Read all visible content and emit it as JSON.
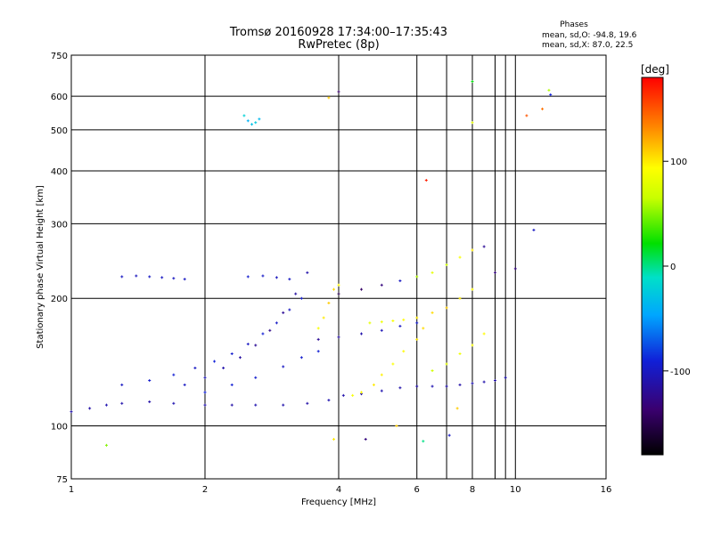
{
  "chart_data": {
    "type": "scatter",
    "title": "Tromsø 20160928 17:34:00–17:35:43",
    "subtitle": "RwPretec (8p)",
    "xlabel": "Frequency [MHz]",
    "ylabel": "Stationary phase Virtual Height [km]",
    "x_scale": "log",
    "y_scale": "log",
    "xlim": [
      1,
      16
    ],
    "ylim": [
      75,
      750
    ],
    "x_ticks": [
      1,
      2,
      4,
      6,
      8,
      10,
      16
    ],
    "y_ticks": [
      75,
      100,
      200,
      300,
      400,
      500,
      600,
      750
    ],
    "stats_header": "Phases",
    "stats_lines": [
      "mean, sd,O: -94.8, 19.6",
      "mean, sd,X:  87.0, 22.5"
    ],
    "colorbar": {
      "label": "[deg]",
      "ticks": [
        100,
        0,
        -100
      ],
      "range": [
        -180,
        180
      ]
    },
    "series": [
      {
        "description": "O-mode F trace",
        "x": [
          1.0,
          1.1,
          1.2,
          1.3,
          1.5,
          1.7,
          2.0,
          2.3,
          2.6,
          3.0,
          3.4,
          3.8,
          4.1,
          4.5,
          5.0,
          5.5,
          6.0,
          6.5,
          7.0,
          7.5,
          8.0,
          8.5,
          9.0,
          9.5
        ],
        "y": [
          108,
          110,
          112,
          113,
          114,
          113,
          112,
          112,
          112,
          112,
          113,
          115,
          118,
          119,
          121,
          123,
          124,
          124,
          124,
          125,
          126,
          127,
          128,
          130
        ],
        "phase": [
          -110,
          -112,
          -108,
          -110,
          -112,
          -108,
          -110,
          -112,
          -108,
          -110,
          -112,
          -108,
          -110,
          -112,
          -108,
          -110,
          -112,
          -108,
          -110,
          -112,
          -108,
          -110,
          -112,
          -108
        ]
      },
      {
        "description": "Rising trace 1",
        "x": [
          1.3,
          1.5,
          1.7,
          1.9,
          2.1,
          2.3,
          2.5,
          2.7,
          2.9,
          3.1,
          3.3
        ],
        "y": [
          125,
          128,
          132,
          137,
          142,
          148,
          156,
          165,
          175,
          188,
          200
        ],
        "phase": [
          -100,
          -95,
          -92,
          -100,
          -90,
          -95,
          -100,
          -92,
          -98,
          -100,
          -95
        ]
      },
      {
        "description": "Rising trace 2",
        "x": [
          1.8,
          2.0,
          2.2,
          2.4,
          2.6,
          2.8,
          3.0,
          3.2,
          3.4
        ],
        "y": [
          125,
          130,
          137,
          145,
          155,
          168,
          185,
          205,
          230
        ],
        "phase": [
          -100,
          -105,
          -110,
          -115,
          -120,
          -125,
          -120,
          -115,
          -110
        ]
      },
      {
        "description": "Rising trace 3",
        "x": [
          2.0,
          2.3,
          2.6,
          3.0,
          3.3,
          3.6
        ],
        "y": [
          120,
          125,
          130,
          138,
          145,
          150
        ],
        "phase": [
          -90,
          -92,
          -95,
          -100,
          -95,
          -92
        ]
      },
      {
        "description": "Horizontal band ~225 km",
        "x": [
          1.3,
          1.4,
          1.5,
          1.6,
          1.7,
          1.8,
          2.5,
          2.7,
          2.9,
          3.1
        ],
        "y": [
          225,
          226,
          225,
          224,
          223,
          222,
          225,
          226,
          224,
          222
        ],
        "phase": [
          -100,
          -102,
          -99,
          -100,
          -101,
          -100,
          -95,
          -98,
          -102,
          -99
        ]
      },
      {
        "description": "Cluster ~530 km",
        "x": [
          2.45,
          2.5,
          2.55,
          2.6,
          2.65
        ],
        "y": [
          540,
          525,
          515,
          520,
          530
        ],
        "phase": [
          -20,
          -40,
          -30,
          -25,
          -35
        ]
      },
      {
        "description": "Yellow (X-mode) trace 1",
        "x": [
          3.6,
          3.7,
          3.8,
          3.9,
          4.0
        ],
        "y": [
          170,
          180,
          195,
          210,
          215
        ],
        "phase": [
          90,
          100,
          110,
          105,
          95
        ]
      },
      {
        "description": "Yellow (X-mode) trace 2",
        "x": [
          4.3,
          4.5,
          4.8,
          5.0,
          5.3,
          5.6,
          6.0,
          6.2
        ],
        "y": [
          118,
          120,
          125,
          132,
          140,
          150,
          160,
          170
        ],
        "phase": [
          90,
          95,
          100,
          98,
          92,
          95,
          100,
          105
        ]
      },
      {
        "description": "Yellow (X-mode) trace 3",
        "x": [
          4.7,
          5.0,
          5.3,
          5.6,
          6.0,
          6.5,
          7.0,
          7.5,
          8.0
        ],
        "y": [
          175,
          176,
          177,
          178,
          180,
          185,
          190,
          200,
          210
        ],
        "phase": [
          80,
          85,
          90,
          95,
          100,
          105,
          110,
          100,
          95
        ]
      },
      {
        "description": "Yellow cluster 7-9 MHz",
        "x": [
          6.5,
          7.0,
          7.5,
          8.0,
          8.5
        ],
        "y": [
          135,
          140,
          148,
          155,
          165
        ],
        "phase": [
          70,
          80,
          85,
          90,
          95
        ]
      },
      {
        "description": "Blue trace 4-6 MHz",
        "x": [
          3.6,
          4.0,
          4.5,
          5.0,
          5.5,
          6.0
        ],
        "y": [
          160,
          162,
          165,
          168,
          172,
          175
        ],
        "phase": [
          -120,
          -115,
          -110,
          -105,
          -100,
          -95
        ]
      },
      {
        "description": "Scatter ~200-280 km",
        "x": [
          4.0,
          4.5,
          5.0,
          5.5,
          6.0,
          6.5,
          7.0,
          7.5,
          8.0,
          8.5,
          9.0,
          10.0,
          11.0
        ],
        "y": [
          205,
          210,
          215,
          220,
          225,
          230,
          240,
          250,
          260,
          265,
          230,
          235,
          290
        ],
        "phase": [
          -150,
          -140,
          -130,
          -100,
          60,
          80,
          70,
          90,
          100,
          -120,
          -130,
          -130,
          -100
        ]
      },
      {
        "description": "Scattered outliers",
        "x": [
          1.2,
          3.9,
          4.6,
          5.4,
          6.2,
          6.3,
          7.1,
          7.4,
          8.0,
          8.0,
          10.6,
          11.5,
          11.9,
          12.0,
          4.0,
          3.8
        ],
        "y": [
          90,
          93,
          93,
          100,
          92,
          380,
          95,
          110,
          650,
          520,
          540,
          560,
          620,
          605,
          615,
          595
        ],
        "phase": [
          50,
          100,
          -130,
          110,
          0,
          170,
          -100,
          110,
          20,
          80,
          150,
          140,
          60,
          -90,
          -140,
          110
        ]
      }
    ]
  }
}
